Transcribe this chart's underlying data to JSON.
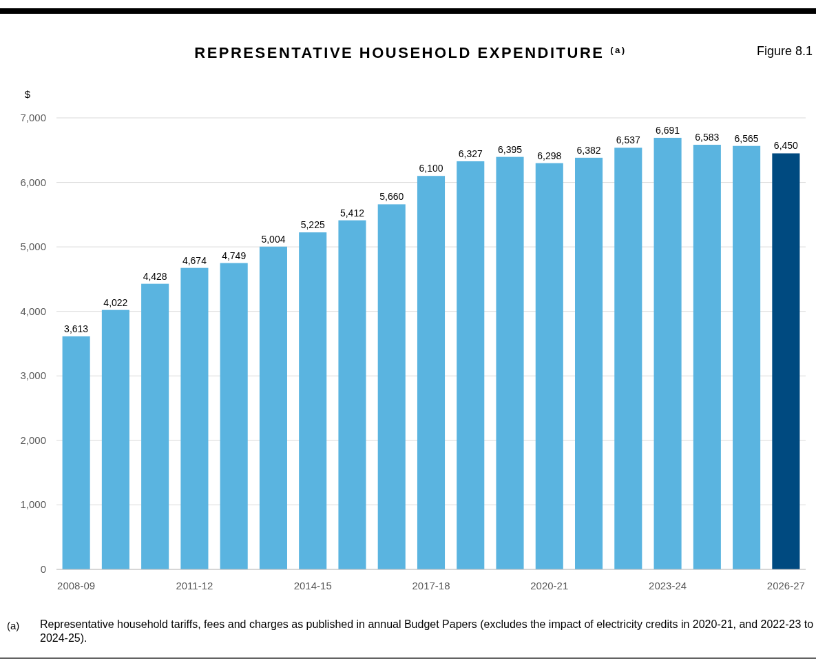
{
  "chart_data": {
    "type": "bar",
    "title": "REPRESENTATIVE HOUSEHOLD EXPENDITURE $^{(a)}$",
    "ylabel": "$",
    "annotations": [
      "Figure 8.1",
      "(a)",
      "Representative household tariffs, fees and charges as published in annual Budget Papers (excludes the impact of electricity credits in 2020-21, and 2022-23 to 2024-25)."
    ],
    "categories": [
      "2008-09",
      null,
      null,
      "2011-12",
      null,
      null,
      "2014-15",
      null,
      null,
      "2017-18",
      null,
      null,
      "2020-21",
      null,
      null,
      "2023-24",
      null,
      null,
      "2026-27"
    ],
    "values": [
      3613,
      4022,
      4428,
      4674,
      4749,
      5004,
      5225,
      5412,
      5660,
      6100,
      6327,
      6395,
      6298,
      6382,
      6537,
      6691,
      6583,
      6565,
      6450
    ],
    "colors": [
      "#5ab4e0",
      "#5ab4e0",
      "#5ab4e0",
      "#5ab4e0",
      "#5ab4e0",
      "#5ab4e0",
      "#5ab4e0",
      "#5ab4e0",
      "#5ab4e0",
      "#5ab4e0",
      "#5ab4e0",
      "#5ab4e0",
      "#5ab4e0",
      "#5ab4e0",
      "#5ab4e0",
      "#5ab4e0",
      "#5ab4e0",
      "#5ab4e0",
      "#004a80"
    ],
    "ylim": [
      0,
      7000
    ],
    "yticks": [
      {
        "value": 0,
        "label": "0"
      },
      {
        "value": 1000,
        "label": "1,000"
      },
      {
        "value": 2000,
        "label": "2,000"
      },
      {
        "value": 3000,
        "label": "3,000"
      },
      {
        "value": 4000,
        "label": "4,000"
      },
      {
        "value": 5000,
        "label": "5,000"
      },
      {
        "value": 6000,
        "label": "6,000"
      },
      {
        "value": 7000,
        "label": "7,000"
      }
    ],
    "value_labels": [
      "3,613",
      "4,022",
      "4,428",
      "4,674",
      "4,749",
      "5,004",
      "5,225",
      "5,412",
      "5,660",
      "6,100",
      "6,327",
      "6,395",
      "6,298",
      "6,382",
      "6,537",
      "6,691",
      "6,583",
      "6,565",
      "6,450"
    ],
    "grid": "y"
  }
}
